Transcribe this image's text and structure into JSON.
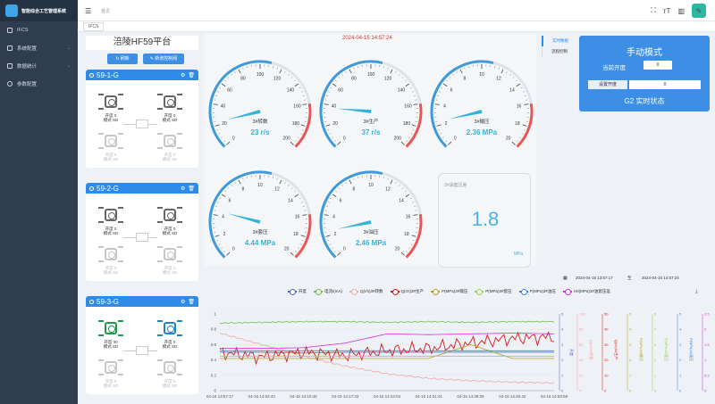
{
  "app": {
    "title": "智能综合工艺管理系统"
  },
  "sidebar": {
    "items": [
      {
        "label": "IFCS",
        "icon": "screen-icon",
        "chevron": false
      },
      {
        "label": "系统配置",
        "icon": "grid-icon",
        "chevron": true
      },
      {
        "label": "数据统计",
        "icon": "bar-chart-icon",
        "chevron": true
      },
      {
        "label": "参数配置",
        "icon": "settings-icon",
        "chevron": false
      }
    ]
  },
  "topbar": {
    "breadcrumb": "首页",
    "fold_icon": "menu-fold-icon",
    "avatar_icon": "pen-icon"
  },
  "tabs": [
    {
      "label": "IFCS"
    }
  ],
  "platform": {
    "title": "涪陵HF59平台",
    "refresh_label": "刷新",
    "new_label": "新增控制阀"
  },
  "wells": [
    {
      "name": "59-1-G",
      "v1": {
        "open": "开度 0",
        "mode": "模式 SD"
      },
      "v2": {
        "open": "开度 0",
        "mode": "模式 SD"
      },
      "v3": {
        "open": "开度 0",
        "mode": "模式 SD"
      },
      "v4": {
        "open": "开度 0",
        "mode": "模式 SD"
      }
    },
    {
      "name": "59-2-G",
      "v1": {
        "open": "开度 0",
        "mode": "模式 SD"
      },
      "v2": {
        "open": "开度 0",
        "mode": "模式 SD"
      },
      "v3": {
        "open": "开度 0",
        "mode": "模式 SD"
      },
      "v4": {
        "open": "开度 0",
        "mode": "模式 SD"
      }
    },
    {
      "name": "59-3-G",
      "v1": {
        "open": "开度 30",
        "mode": "模式 SD"
      },
      "v2": {
        "open": "开度 0",
        "mode": "模式 SD"
      },
      "v3": {
        "open": "开度 0",
        "mode": "模式 SD"
      },
      "v4": {
        "open": "开度 0",
        "mode": "模式 SD"
      }
    }
  ],
  "main": {
    "datetime": "2024-04-15 14:57:24",
    "gauges": [
      {
        "name": "3#转数",
        "value_text": "23 r/s",
        "value": 23,
        "max": 200,
        "ticks": [
          "0",
          "20",
          "40",
          "60",
          "80",
          "100",
          "120",
          "140",
          "160",
          "180",
          "200"
        ]
      },
      {
        "name": "3#生产",
        "value_text": "37 r/s",
        "value": 37,
        "max": 200,
        "ticks": [
          "0",
          "20",
          "40",
          "60",
          "80",
          "100",
          "120",
          "140",
          "160",
          "180",
          "200"
        ]
      },
      {
        "name": "3#输压",
        "value_text": "2.36 MPa",
        "value": 2.36,
        "max": 20,
        "ticks": [
          "0",
          "2",
          "4",
          "6",
          "8",
          "10",
          "12",
          "14",
          "16",
          "18",
          "20"
        ]
      },
      {
        "name": "3#套压",
        "value_text": "4.44 MPa",
        "value": 4.44,
        "max": 20,
        "ticks": [
          "0",
          "2",
          "4",
          "6",
          "8",
          "10",
          "12",
          "14",
          "16",
          "18",
          "20"
        ]
      },
      {
        "name": "3#油压",
        "value_text": "2.46 MPa",
        "value": 2.46,
        "max": 20,
        "ticks": [
          "0",
          "2",
          "4",
          "6",
          "8",
          "10",
          "12",
          "14",
          "16",
          "18",
          "20"
        ]
      }
    ],
    "pressure_card": {
      "title": "3#油套压差",
      "value": "1.8",
      "unit": "MPa"
    }
  },
  "side_nav": [
    {
      "label": "实时数据",
      "active": true
    },
    {
      "label": "流程控制",
      "active": false
    }
  ],
  "mode_card": {
    "title": "手动模式",
    "current_open_label": "当前开度",
    "current_open_value": "0",
    "set_open_label": "设置开度",
    "set_open_value": "0",
    "status": "G2 实时状态"
  },
  "date_range": {
    "start": "2024-04-15 13:57:17",
    "sep": "至",
    "end": "2024-04-15 14:57:24"
  },
  "colors": {
    "accent": "#2f8be8",
    "sidebar": "#2f3d4e",
    "gauge_blue": "#3e9ad9",
    "gauge_red": "#ea5455"
  },
  "chart_data": {
    "type": "line",
    "x": [
      "04-15 13:57:17",
      "04-15 14:02:44",
      "04-15 14:10:45",
      "04-15 14:17:33",
      "04-15 14:24:04",
      "04-15 14:31:41",
      "04-15 14:39:26",
      "04-15 14:46:42",
      "04-15 14:53:59"
    ],
    "left_axis": {
      "ticks": [
        "0",
        "0.2",
        "0.4",
        "0.6",
        "0.8",
        "1"
      ]
    },
    "series": [
      {
        "name": "开度",
        "color": "#4a67c8",
        "values": [
          0.5,
          0.5,
          0.49,
          0.5,
          0.5,
          0.5,
          0.5,
          0.5,
          0.5
        ]
      },
      {
        "name": "电流I(mA)",
        "color": "#6cbf4a",
        "values": [
          0.88,
          0.89,
          0.9,
          0.9,
          0.89,
          0.9,
          0.89,
          0.9,
          0.9
        ]
      },
      {
        "name": "Q(r/s)3#转数",
        "color": "#f0a6a6",
        "values": [
          0.75,
          0.6,
          0.45,
          0.32,
          0.22,
          0.16,
          0.13,
          0.11,
          0.1
        ]
      },
      {
        "name": "Q(r/s)3#生产",
        "color": "#d41c1c",
        "values": [
          0.5,
          0.44,
          0.5,
          0.46,
          0.52,
          0.55,
          0.62,
          0.68,
          0.7
        ]
      },
      {
        "name": "P(MPa)3#输压",
        "color": "#b5a11f",
        "values": [
          0.42,
          0.42,
          0.42,
          0.42,
          0.42,
          0.42,
          0.6,
          0.42,
          0.42
        ]
      },
      {
        "name": "P(MPa)3#套压",
        "color": "#8fd641",
        "values": [
          0.45,
          0.45,
          0.45,
          0.45,
          0.45,
          0.45,
          0.45,
          0.45,
          0.45
        ]
      },
      {
        "name": "P(MPa)3#油压",
        "color": "#3b82d6",
        "values": [
          0.52,
          0.52,
          0.52,
          0.52,
          0.52,
          0.52,
          0.52,
          0.52,
          0.52
        ]
      },
      {
        "name": "H0(MPa)3#油套压差",
        "color": "#d02fd8",
        "values": [
          0.55,
          0.55,
          0.56,
          0.62,
          0.74,
          0.73,
          0.74,
          0.75,
          0.74
        ]
      }
    ],
    "right_axes": [
      {
        "label": "Q(r/s)3#转数",
        "color": "#f0a6a6",
        "ticks": [
          "0",
          "20",
          "40",
          "60",
          "80",
          "100"
        ]
      },
      {
        "label": "Q(r/s)3#生产",
        "color": "#d41c1c",
        "ticks": [
          "0",
          "10",
          "20",
          "30",
          "40",
          "50"
        ]
      },
      {
        "label": "P(MPa)3#输压",
        "color": "#b5a11f",
        "ticks": [
          "0",
          "1",
          "2",
          "3",
          "4",
          "5"
        ]
      },
      {
        "label": "P(MPa)3#套压",
        "color": "#8fd641",
        "ticks": [
          "0",
          "1",
          "2",
          "3",
          "4",
          "5"
        ]
      },
      {
        "label": "P(MPa)3#油压",
        "color": "#3b82d6",
        "ticks": [
          "0",
          "1",
          "2",
          "3",
          "4",
          "5"
        ]
      },
      {
        "label": "H0(MPa)3#油套压差",
        "color": "#d02fd8",
        "ticks": [
          "0",
          "0.5",
          "1",
          "1.5",
          "2",
          "2.5"
        ]
      }
    ],
    "left_extra_axes": [
      {
        "label": "开度",
        "color": "#4a67c8",
        "ticks": [
          "0",
          "1",
          "2",
          "3",
          "4",
          "5"
        ]
      }
    ]
  }
}
